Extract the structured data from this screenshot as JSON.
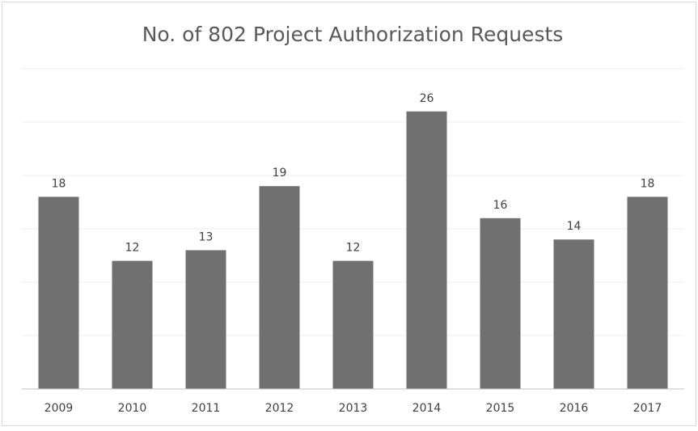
{
  "chart_data": {
    "type": "bar",
    "title": "No. of 802 Project Authorization Requests",
    "categories": [
      "2009",
      "2010",
      "2011",
      "2012",
      "2013",
      "2014",
      "2015",
      "2016",
      "2017"
    ],
    "values": [
      18,
      12,
      13,
      19,
      12,
      26,
      16,
      14,
      18
    ],
    "color": "#707070",
    "ylim": [
      0,
      30
    ],
    "yticks": [
      0,
      5,
      10,
      15,
      20,
      25,
      30
    ],
    "grid": true
  }
}
